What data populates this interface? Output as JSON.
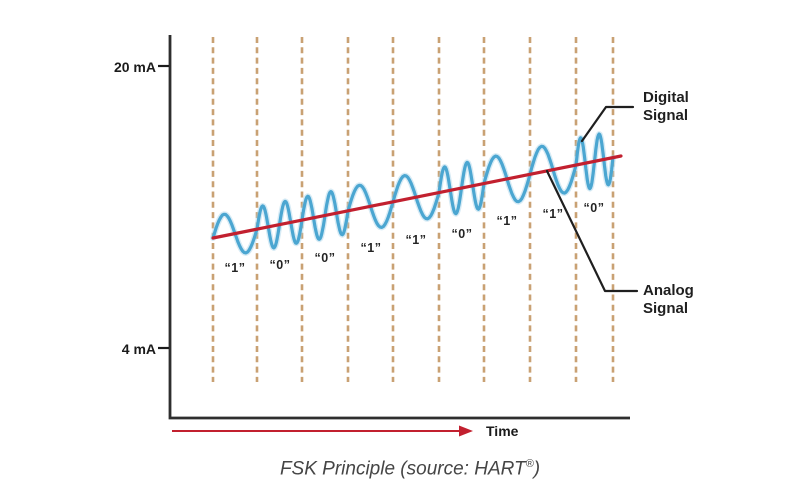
{
  "figure": {
    "caption_main": "FSK Principle (source: HART",
    "caption_reg": "®",
    "caption_close": ")"
  },
  "axes": {
    "y_top": "20 mA",
    "y_bottom": "4 mA",
    "x_label": "Time"
  },
  "legend": {
    "digital_line1": "Digital",
    "digital_line2": "Signal",
    "analog_line1": "Analog",
    "analog_line2": "Signal"
  },
  "bit_labels": [
    "“1”",
    "“0”",
    "“0”",
    "“1”",
    "“1”",
    "“0”",
    "“1”",
    "“1”",
    "“0”"
  ],
  "colors": {
    "wave": "#4BA6D1",
    "wave_halo": "#A6D3E8",
    "analog": "#C2202F",
    "grid": "#C9A173",
    "axis": "#2E2E2E",
    "pointer": "#1F1F1F",
    "arrow": "#C2202F"
  },
  "chart_data": {
    "type": "line",
    "title": "FSK Principle (source: HART®)",
    "xlabel": "Time",
    "y_axis_ticks": [
      "20 mA",
      "4 mA"
    ],
    "bits": [
      "1",
      "0",
      "0",
      "1",
      "1",
      "0",
      "1",
      "1",
      "0"
    ],
    "cycles_per_bit": {
      "1": 1,
      "0": 2
    },
    "series": [
      {
        "name": "Digital Signal",
        "shape": "FSK sine wave superimposed on the analog current; logic “1” drawn as 1 cycle per bit slot, logic “0” as 2 cycles per bit slot"
      },
      {
        "name": "Analog Signal",
        "shape": "slowly rising straight 4–20 mA current line"
      }
    ],
    "grid": "dashed vertical bit-slot separators",
    "legend_position": "right, with pointer lines"
  }
}
